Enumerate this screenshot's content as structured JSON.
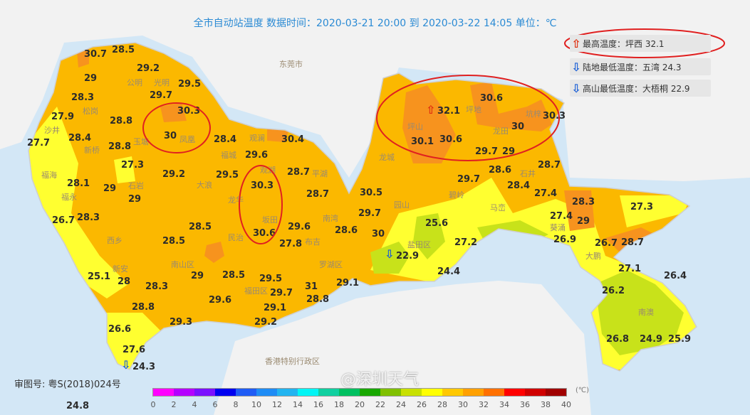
{
  "title": "全市自动站温度  数据时间：2020-03-21 20:00 到 2020-03-22 14:05  单位：℃",
  "summary": [
    {
      "icon": "arrow-up-icon",
      "text": "最高温度：坪西 32.1",
      "color": "#e03010"
    },
    {
      "icon": "arrow-down-icon",
      "text": "陆地最低温度：五湾 24.3",
      "color": "#1a5fd6"
    },
    {
      "icon": "arrow-down-icon",
      "text": "高山最低温度：大梧桐 22.9",
      "color": "#1a5fd6"
    }
  ],
  "neighbors": {
    "dongguan": "东莞市",
    "hongkong": "香港特别行政区"
  },
  "districts": [
    "公明",
    "松岗",
    "光明",
    "凤凰",
    "沙井",
    "新桥",
    "玉塘",
    "福海",
    "福永",
    "石岩",
    "大浪",
    "观澜",
    "福城",
    "观湖",
    "平湖",
    "龙华",
    "坂田",
    "民治",
    "南湾",
    "布吉",
    "罗湖区",
    "福田区",
    "南山区",
    "新安",
    "西乡",
    "龙城",
    "坪地",
    "龙田",
    "坑梓",
    "园山",
    "石井",
    "马峦",
    "盐田区",
    "葵涌",
    "大鹏",
    "南澳",
    "坪山",
    "碧岭"
  ],
  "stations": [
    "30.7",
    "28.5",
    "29",
    "29.2",
    "29.5",
    "29.7",
    "28.3",
    "30.3",
    "27.9",
    "28.8",
    "27.7",
    "28.4",
    "30",
    "28.4",
    "30.4",
    "28.8",
    "29.6",
    "27.3",
    "29.2",
    "29.5",
    "30.3",
    "28.7",
    "28.1",
    "29",
    "28.7",
    "29",
    "26.7",
    "28.3",
    "30.5",
    "29.7",
    "28.5",
    "30.6",
    "29.6",
    "28.6",
    "30",
    "27.8",
    "28.5",
    "29",
    "28.5",
    "29.5",
    "29.7",
    "31",
    "29.1",
    "28.3",
    "25.1",
    "28",
    "28.8",
    "29.6",
    "29.1",
    "28.8",
    "29.2",
    "29.3",
    "26.6",
    "27.6",
    "24.3",
    "24.8",
    "32.1",
    "30.6",
    "30.3",
    "30",
    "30.1",
    "30.6",
    "29.7",
    "29",
    "28.6",
    "29.7",
    "28.7",
    "28.4",
    "27.4",
    "28.3",
    "27.3",
    "27.4",
    "29",
    "25.6",
    "26.9",
    "26.7",
    "28.7",
    "27.2",
    "22.9",
    "24.4",
    "27.1",
    "26.4",
    "26.2",
    "26.8",
    "24.9",
    "25.9"
  ],
  "color_scale": {
    "ticks": [
      "0",
      "2",
      "4",
      "6",
      "8",
      "10",
      "12",
      "14",
      "16",
      "18",
      "20",
      "22",
      "24",
      "26",
      "28",
      "30",
      "32",
      "34",
      "36",
      "38",
      "40"
    ],
    "colors": [
      "#ff00ff",
      "#b400ff",
      "#7a10ff",
      "#0000f0",
      "#1f5cf5",
      "#1e8cf5",
      "#22b4f0",
      "#00f5f5",
      "#10d0a0",
      "#00c060",
      "#18a800",
      "#80c000",
      "#c8e000",
      "#ffff00",
      "#ffc800",
      "#ffa000",
      "#ff7000",
      "#ff0000",
      "#d00000",
      "#a00000"
    ],
    "unit": "(℃)"
  },
  "approval_number": "审图号: 粤S(2018)024号",
  "watermark": "@深圳天气",
  "map_colors": {
    "sea": "#d3e7f6",
    "land_other": "#f2f2f2",
    "base": "#fbb800",
    "warm": "#f7931e",
    "cool": "#ffff30",
    "cold": "#c8e21a",
    "annotation": "#e02020"
  }
}
